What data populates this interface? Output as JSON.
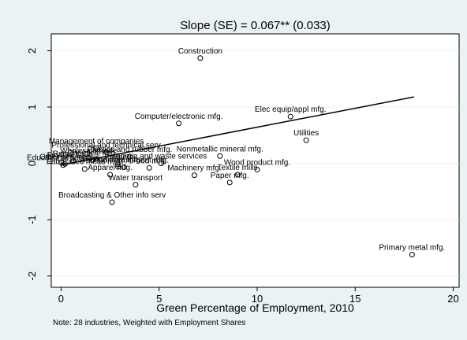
{
  "chart_data": {
    "type": "scatter",
    "title": "Slope (SE) = 0.067** (0.033)",
    "xlabel": "Green Percentage of Employment, 2010",
    "ylabel": "",
    "note": "Note: 28 industries, Weighted with Employment Shares",
    "xlim": [
      -0.5,
      20.3
    ],
    "ylim": [
      -2.2,
      2.3
    ],
    "xticks": [
      0,
      5,
      10,
      15,
      20
    ],
    "xtick_labels": [
      "0",
      "5",
      "10",
      "15",
      "20"
    ],
    "yticks": [
      2,
      1,
      0,
      -1,
      -2
    ],
    "ytick_labels": [
      "2",
      "1",
      "0",
      "-1",
      "-2"
    ],
    "grid": true,
    "fit_line": {
      "x": [
        0,
        18
      ],
      "y": [
        -0.03,
        1.18
      ]
    },
    "points": [
      {
        "label": "Construction",
        "x": 7.1,
        "y": 1.87
      },
      {
        "label": "Computer/electronic mfg.",
        "x": 6.0,
        "y": 0.71
      },
      {
        "label": "Elec equip/appl mfg.",
        "x": 11.7,
        "y": 0.83
      },
      {
        "label": "Utilities",
        "x": 12.5,
        "y": 0.41
      },
      {
        "label": "Primary metal mfg.",
        "x": 17.9,
        "y": -1.62
      },
      {
        "label": "Broadcasting & Other info serv",
        "x": 2.6,
        "y": -0.69
      },
      {
        "label": "Water transport",
        "x": 3.8,
        "y": -0.38
      },
      {
        "label": "Paper mfg.",
        "x": 8.6,
        "y": -0.34
      },
      {
        "label": "Textile mills",
        "x": 9.0,
        "y": -0.2
      },
      {
        "label": "Wood product mfg.",
        "x": 10.0,
        "y": -0.11
      },
      {
        "label": "Machinery mfg.",
        "x": 6.8,
        "y": -0.21
      },
      {
        "label": "Nonmetallic mineral mfg.",
        "x": 8.1,
        "y": 0.13
      },
      {
        "label": "Management of companies",
        "x": 1.8,
        "y": 0.27
      },
      {
        "label": "Professional and technical serv",
        "x": 2.3,
        "y": 0.2
      },
      {
        "label": "Plastics and rubber mfg.",
        "x": 3.5,
        "y": 0.12
      },
      {
        "label": "Fabricated metal mfg.",
        "x": 1.2,
        "y": -0.1
      },
      {
        "label": "Admin and waste services",
        "x": 5.1,
        "y": 0.0
      },
      {
        "label": "Other services",
        "x": 0.2,
        "y": -0.01
      },
      {
        "label": "Finance",
        "x": 0.0,
        "y": 0.02
      },
      {
        "label": "Educational services",
        "x": 0.1,
        "y": -0.03
      },
      {
        "label": "Chemical mfg.",
        "x": 1.6,
        "y": 0.06
      },
      {
        "label": "Food mfg.",
        "x": 4.5,
        "y": -0.08
      },
      {
        "label": "Transport equipment mfg.",
        "x": 3.2,
        "y": -0.07
      },
      {
        "label": "Printing",
        "x": 2.9,
        "y": -0.02
      },
      {
        "label": "Apparel mfg.",
        "x": 2.5,
        "y": -0.2
      },
      {
        "label": "Furniture mfg.",
        "x": 2.9,
        "y": -0.06
      },
      {
        "label": "Retail trade",
        "x": 0.6,
        "y": 0.04
      },
      {
        "label": "Wholesale trade",
        "x": 1.4,
        "y": 0.1
      }
    ]
  }
}
